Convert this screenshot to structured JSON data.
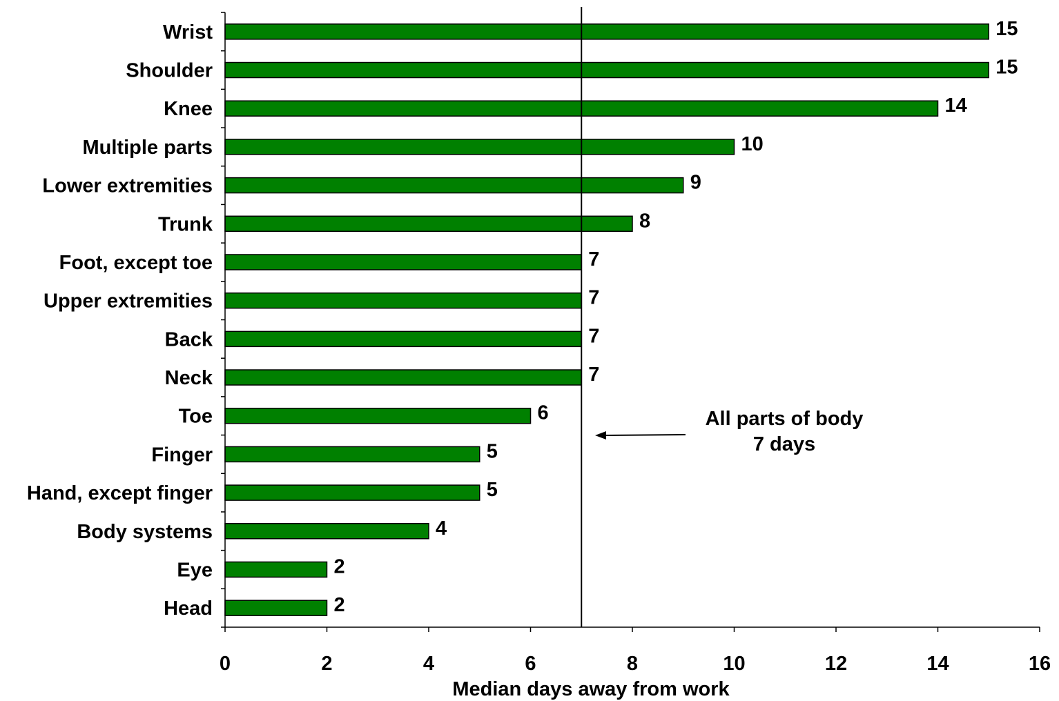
{
  "chart_data": {
    "type": "bar",
    "orientation": "horizontal",
    "categories": [
      "Wrist",
      "Shoulder",
      "Knee",
      "Multiple parts",
      "Lower extremities",
      "Trunk",
      "Foot, except toe",
      "Upper extremities",
      "Back",
      "Neck",
      "Toe",
      "Finger",
      "Hand, except finger",
      "Body systems",
      "Eye",
      "Head"
    ],
    "values": [
      15,
      15,
      14,
      10,
      9,
      8,
      7,
      7,
      7,
      7,
      6,
      5,
      5,
      4,
      2,
      2
    ],
    "data_labels": [
      "15",
      "15",
      "14",
      "10",
      "9",
      "8",
      "7",
      "7",
      "7",
      "7",
      "6",
      "5",
      "5",
      "4",
      "2",
      "2"
    ],
    "xlabel": "Median days away from work",
    "ylabel": "",
    "xlim": [
      0,
      16
    ],
    "xticks": [
      0,
      2,
      4,
      6,
      8,
      10,
      12,
      14,
      16
    ],
    "grid": false,
    "bar_color": "#008000",
    "reference_line": {
      "value": 7
    },
    "annotation": {
      "line1": "All parts of body",
      "line2": "7 days"
    }
  }
}
